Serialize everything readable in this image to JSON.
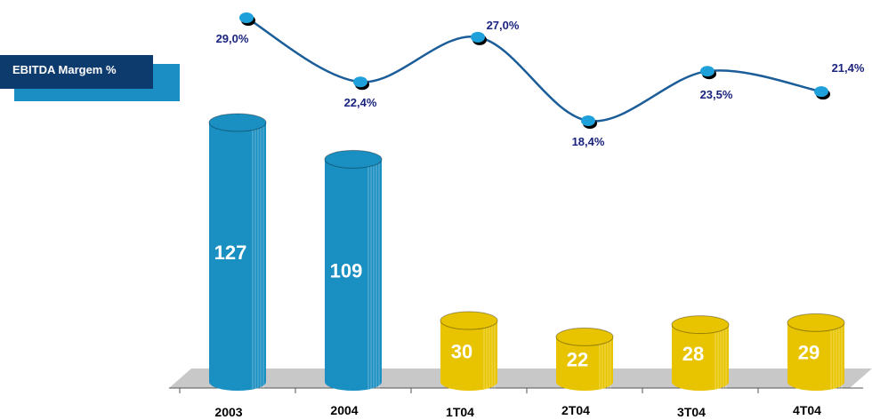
{
  "chart_data": {
    "type": "bar-line",
    "categories": [
      "2003",
      "2004",
      "1T04",
      "2T04",
      "3T04",
      "4T04"
    ],
    "series": [
      {
        "type": "bar",
        "colors": [
          "#1a8fc2",
          "#1a8fc2",
          "#e8c300",
          "#e8c300",
          "#e8c300",
          "#e8c300"
        ],
        "values": [
          127,
          109,
          30,
          22,
          28,
          29
        ]
      },
      {
        "type": "line",
        "name": "EBITDA Margem %",
        "color": "#1b5d99",
        "marker_color": "#1ea0da",
        "values": [
          29.0,
          22.4,
          27.0,
          18.4,
          23.5,
          21.4
        ],
        "value_labels": [
          "29,0%",
          "22,4%",
          "27,0%",
          "18,4%",
          "23,5%",
          "21,4%"
        ]
      }
    ]
  }
}
